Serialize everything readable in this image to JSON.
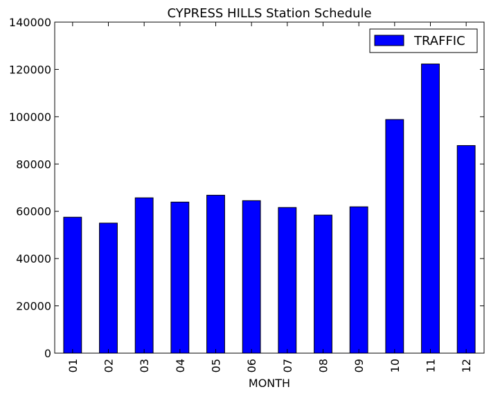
{
  "chart_data": {
    "type": "bar",
    "title": "CYPRESS HILLS Station Schedule",
    "xlabel": "MONTH",
    "ylabel": "",
    "categories": [
      "01",
      "02",
      "03",
      "04",
      "05",
      "06",
      "07",
      "08",
      "09",
      "10",
      "11",
      "12"
    ],
    "series": [
      {
        "name": "TRAFFIC",
        "color": "#0000ff",
        "values": [
          57500,
          55000,
          65700,
          63900,
          66800,
          64500,
          61600,
          58400,
          61900,
          98800,
          122300,
          87800
        ]
      }
    ],
    "ylim": [
      0,
      140000
    ],
    "yticks": [
      "0",
      "20000",
      "40000",
      "60000",
      "80000",
      "100000",
      "120000",
      "140000"
    ],
    "grid": false,
    "legend_position": "top-right"
  }
}
